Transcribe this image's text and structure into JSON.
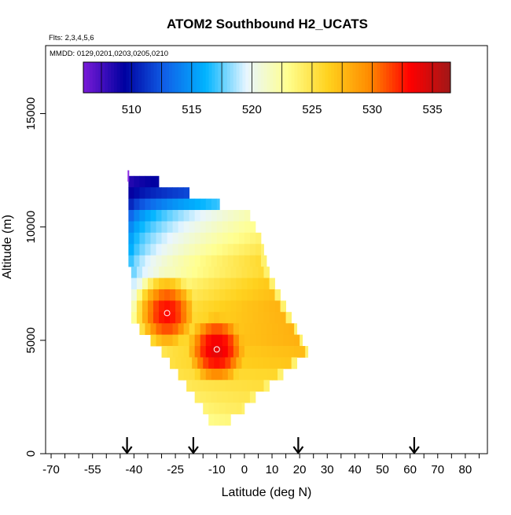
{
  "chart_data": {
    "type": "heatmap",
    "title": "ATOM2 Southbound H2_UCATS",
    "flights_note": "Flts: 2,3,4,5,6",
    "dates_note": "MMDD: 0129,0201,0203,0205,0210",
    "xlabel": "Latitude (deg N)",
    "ylabel": "Altitude (m)",
    "xlim": [
      -72,
      88
    ],
    "ylim": [
      0,
      18000
    ],
    "x_ticks": [
      -70,
      -55,
      -40,
      -25,
      -10,
      0,
      10,
      20,
      30,
      40,
      50,
      60,
      70,
      80
    ],
    "x_tick_labels": [
      "-70",
      "-55",
      "-40",
      "-25",
      "-10",
      "0",
      "10",
      "20",
      "30",
      "40",
      "50",
      "60",
      "70",
      "80"
    ],
    "y_ticks": [
      0,
      5000,
      10000,
      15000
    ],
    "y_tick_labels": [
      "0",
      "5000",
      "10000",
      "15000"
    ],
    "colorbar": {
      "range": [
        506,
        536.5
      ],
      "ticks": [
        510,
        515,
        520,
        525,
        530,
        535
      ],
      "tick_labels": [
        "510",
        "515",
        "520",
        "525",
        "530",
        "535"
      ],
      "colors": [
        "#7a1bd8",
        "#0000a0",
        "#1060e8",
        "#00b4ff",
        "#e8f6ff",
        "#ffff90",
        "#ffd21e",
        "#ff8c00",
        "#ff0000",
        "#a01818"
      ]
    },
    "rows": [
      {
        "alt": 12000,
        "x0": -42,
        "x1": -31,
        "v0": 508,
        "v1": 509.5
      },
      {
        "alt": 11500,
        "x0": -42,
        "x1": -20,
        "v0": 508.5,
        "v1": 512
      },
      {
        "alt": 11000,
        "x0": -42,
        "x1": -9,
        "v0": 509.5,
        "v1": 517
      },
      {
        "alt": 10500,
        "x0": -42,
        "x1": 2,
        "v0": 511.5,
        "v1": 522
      },
      {
        "alt": 10000,
        "x0": -42,
        "x1": 4,
        "v0": 513,
        "v1": 523
      },
      {
        "alt": 9500,
        "x0": -42,
        "x1": 6,
        "v0": 514,
        "v1": 524
      },
      {
        "alt": 9000,
        "x0": -42,
        "x1": 7,
        "v0": 514.5,
        "v1": 525
      },
      {
        "alt": 8500,
        "x0": -42,
        "x1": 8,
        "v0": 515.5,
        "v1": 526
      },
      {
        "alt": 8000,
        "x0": -41,
        "x1": 9,
        "v0": 516.5,
        "v1": 526
      },
      {
        "alt": 7500,
        "x0": -41,
        "x1": 11,
        "v0": 518,
        "v1": 527
      },
      {
        "alt": 7000,
        "x0": -41,
        "x1": 13,
        "v0": 519.5,
        "v1": 527.5
      },
      {
        "alt": 6500,
        "x0": -41,
        "x1": 15,
        "v0": 521,
        "v1": 528
      },
      {
        "alt": 6000,
        "x0": -41,
        "x1": 17,
        "v0": 522,
        "v1": 528
      },
      {
        "alt": 5500,
        "x0": -38,
        "x1": 19,
        "v0": 523,
        "v1": 528
      },
      {
        "alt": 5000,
        "x0": -34,
        "x1": 21,
        "v0": 524,
        "v1": 528
      },
      {
        "alt": 4500,
        "x0": -30,
        "x1": 23,
        "v0": 524.5,
        "v1": 527.5
      },
      {
        "alt": 4000,
        "x0": -27,
        "x1": 19,
        "v0": 525,
        "v1": 527
      },
      {
        "alt": 3500,
        "x0": -24,
        "x1": 14,
        "v0": 525,
        "v1": 526
      },
      {
        "alt": 3000,
        "x0": -21,
        "x1": 9,
        "v0": 524.5,
        "v1": 525.5
      },
      {
        "alt": 2500,
        "x0": -18,
        "x1": 4,
        "v0": 524,
        "v1": 525
      },
      {
        "alt": 2000,
        "x0": -15,
        "x1": 0,
        "v0": 523.5,
        "v1": 524.5
      },
      {
        "alt": 1500,
        "x0": -13,
        "x1": -5,
        "v0": 523,
        "v1": 523.5
      }
    ],
    "hotspots": [
      {
        "lat": -28,
        "alt": 6200,
        "value": 533
      },
      {
        "lat": -10,
        "alt": 4600,
        "value": 534
      }
    ],
    "arrows": [
      -42.5,
      -18.5,
      19.5,
      61.5
    ]
  }
}
